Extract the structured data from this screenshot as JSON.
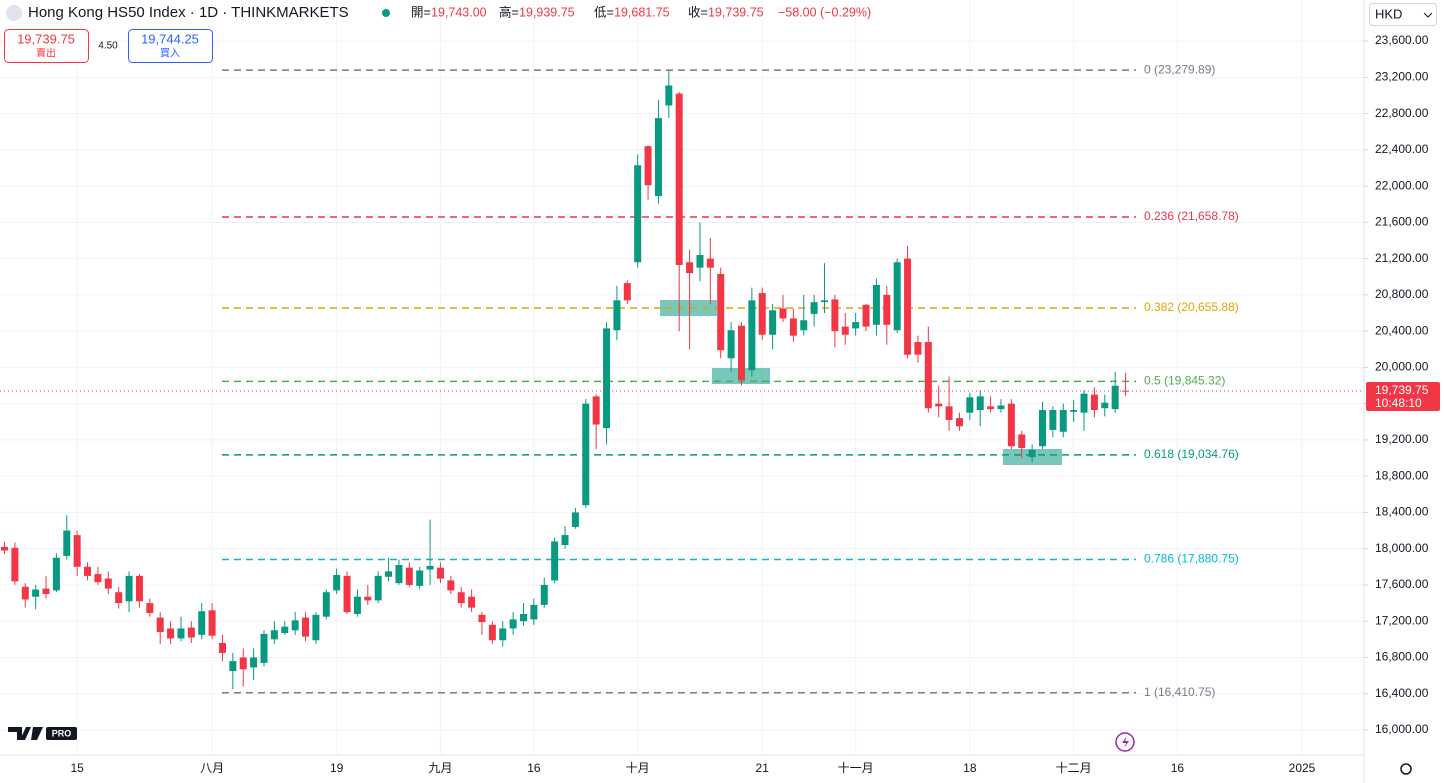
{
  "chart_data": {
    "type": "candlestick",
    "title": "Hong Kong HS50 Index · 1D · THINKMARKETS",
    "header": [
      {
        "label": "開=",
        "value": "19,743.00"
      },
      {
        "label": "高=",
        "value": "19,939.75"
      },
      {
        "label": "低=",
        "value": "19,681.75"
      },
      {
        "label": "收=",
        "value": "19,739.75"
      }
    ],
    "change": "−58.00 (−0.29%)",
    "quote": {
      "sell": "19,739.75",
      "sell_label": "賣出",
      "spread": "4.50",
      "buy": "19,744.25",
      "buy_label": "買入"
    },
    "currency": "HKD",
    "logo": "PRO",
    "last_price": {
      "label": "19,739.75",
      "countdown": "10:48:10"
    },
    "up_color": "#089981",
    "down_color": "#f23645",
    "grid": true,
    "categories": [
      null,
      null,
      null,
      null,
      null,
      null,
      null,
      "15",
      null,
      null,
      null,
      null,
      null,
      null,
      null,
      null,
      null,
      null,
      null,
      null,
      "八月",
      null,
      null,
      null,
      null,
      null,
      null,
      null,
      null,
      null,
      null,
      null,
      "19",
      null,
      null,
      null,
      null,
      null,
      null,
      null,
      null,
      null,
      "九月",
      null,
      null,
      null,
      null,
      null,
      null,
      null,
      null,
      "16",
      null,
      null,
      null,
      null,
      null,
      null,
      null,
      null,
      null,
      "十月",
      null,
      null,
      null,
      null,
      null,
      null,
      null,
      null,
      null,
      null,
      null,
      "21",
      null,
      null,
      null,
      null,
      null,
      null,
      null,
      null,
      "十一月",
      null,
      null,
      null,
      null,
      null,
      null,
      null,
      null,
      null,
      null,
      "18",
      null,
      null,
      null,
      null,
      null,
      null,
      null,
      null,
      null,
      "十二月",
      null,
      null,
      null,
      null,
      null,
      null,
      null,
      null,
      null,
      "16",
      null,
      null,
      null,
      null,
      null,
      null,
      null,
      null,
      null,
      null,
      null,
      "2025"
    ],
    "open": [
      18020,
      18010,
      17580,
      17470,
      17560,
      17540,
      17920,
      18150,
      17800,
      17720,
      17670,
      17520,
      17420,
      17700,
      17400,
      17240,
      17120,
      17010,
      17130,
      17050,
      17320,
      16960,
      16650,
      16800,
      16690,
      16740,
      17000,
      17070,
      17100,
      17240,
      16990,
      17250,
      17540,
      17700,
      17280,
      17470,
      17430,
      17690,
      17620,
      17790,
      17590,
      17770,
      17790,
      17650,
      17520,
      17470,
      17270,
      17160,
      16990,
      17120,
      17200,
      17220,
      17380,
      17650,
      18040,
      18240,
      18480,
      19680,
      19330,
      20410,
      20930,
      21160,
      22440,
      21890,
      22890,
      23020,
      21160,
      21100,
      21200,
      21030,
      20100,
      20460,
      19970,
      20820,
      20360,
      20650,
      20540,
      20410,
      20590,
      20720,
      20750,
      20450,
      20430,
      20690,
      20470,
      20800,
      20410,
      21200,
      20280,
      20280,
      19600,
      19570,
      19440,
      19500,
      19530,
      19570,
      19540,
      19600,
      19260,
      19010,
      19130,
      19310,
      19290,
      19510,
      19500,
      19700,
      19550,
      19540,
      19743,
      null,
      null,
      null,
      null,
      null,
      null,
      null,
      null,
      null,
      null,
      null,
      null,
      null,
      null,
      null,
      null,
      null
    ],
    "high": [
      18080,
      18070,
      17620,
      17600,
      17700,
      17950,
      18370,
      18200,
      17850,
      17800,
      17750,
      17580,
      17750,
      17720,
      17450,
      17300,
      17200,
      17250,
      17200,
      17400,
      17400,
      17050,
      16850,
      16900,
      16900,
      17100,
      17200,
      17200,
      17300,
      17300,
      17300,
      17550,
      17780,
      17750,
      17550,
      17600,
      17750,
      17900,
      17880,
      17850,
      17800,
      18320,
      17850,
      17700,
      17580,
      17550,
      17300,
      17200,
      17200,
      17300,
      17400,
      17450,
      17680,
      18120,
      18250,
      18450,
      19650,
      19700,
      20500,
      20900,
      20960,
      22350,
      22450,
      22950,
      23280,
      23040,
      21300,
      21600,
      21430,
      21100,
      20500,
      20500,
      20880,
      20880,
      20700,
      20800,
      20650,
      20800,
      20800,
      21150,
      20800,
      20600,
      20600,
      20700,
      20980,
      20900,
      21200,
      21340,
      20350,
      20450,
      19800,
      19900,
      19500,
      19720,
      19750,
      19680,
      19650,
      19650,
      19300,
      19150,
      19620,
      19570,
      19600,
      19640,
      19750,
      19780,
      19700,
      19950,
      19939.75,
      null,
      null,
      null,
      null,
      null,
      null,
      null,
      null,
      null,
      null,
      null,
      null,
      null,
      null,
      null,
      null,
      null
    ],
    "low": [
      17940,
      17600,
      17350,
      17330,
      17450,
      17520,
      17880,
      17700,
      17650,
      17600,
      17500,
      17340,
      17300,
      17350,
      17250,
      16950,
      16950,
      16980,
      16960,
      17000,
      17000,
      16760,
      16450,
      16480,
      16550,
      16700,
      16950,
      17050,
      17050,
      16980,
      16950,
      17220,
      17500,
      17280,
      17250,
      17380,
      17400,
      17640,
      17600,
      17580,
      17550,
      17600,
      17620,
      17500,
      17350,
      17300,
      17050,
      16950,
      16920,
      17050,
      17150,
      17160,
      17350,
      17620,
      18000,
      18220,
      18450,
      19100,
      19150,
      20300,
      20700,
      21100,
      21850,
      21800,
      22750,
      20400,
      20200,
      20950,
      20700,
      20100,
      19950,
      19800,
      19900,
      20300,
      20200,
      20500,
      20280,
      20350,
      20450,
      20600,
      20220,
      20250,
      20350,
      20400,
      20350,
      20250,
      20380,
      20100,
      20050,
      19500,
      19450,
      19300,
      19300,
      19420,
      19350,
      19500,
      19500,
      19100,
      19000,
      18950,
      19100,
      19230,
      19230,
      19400,
      19300,
      19450,
      19460,
      19500,
      19681.75,
      null,
      null,
      null,
      null,
      null,
      null,
      null,
      null,
      null,
      null,
      null,
      null,
      null,
      null,
      null,
      null,
      null
    ],
    "close": [
      17980,
      17640,
      17440,
      17550,
      17500,
      17900,
      18200,
      17800,
      17700,
      17630,
      17560,
      17400,
      17700,
      17420,
      17290,
      17080,
      17010,
      17120,
      17020,
      17310,
      17040,
      16850,
      16760,
      16670,
      16800,
      17060,
      17100,
      17140,
      17210,
      17030,
      17270,
      17520,
      17710,
      17300,
      17470,
      17430,
      17700,
      17750,
      17820,
      17600,
      17760,
      17810,
      17670,
      17540,
      17400,
      17350,
      17190,
      16990,
      17120,
      17220,
      17280,
      17380,
      17600,
      18080,
      18150,
      18400,
      19600,
      19370,
      20430,
      20740,
      20740,
      22230,
      22010,
      22750,
      23110,
      21130,
      21040,
      21240,
      21100,
      20190,
      20410,
      19860,
      20740,
      20360,
      20630,
      20540,
      20350,
      20520,
      20720,
      20740,
      20400,
      20360,
      20500,
      20450,
      20910,
      20470,
      21160,
      20140,
      20140,
      19550,
      19570,
      19420,
      19350,
      19670,
      19680,
      19540,
      19580,
      19130,
      19110,
      19090,
      19530,
      19530,
      19530,
      19530,
      19710,
      19530,
      19610,
      19797.75,
      19739.75,
      null,
      null,
      null,
      null,
      null,
      null,
      null,
      null,
      null,
      null,
      null,
      null,
      null,
      null,
      null,
      null,
      null
    ],
    "ylim": [
      15724,
      24053
    ],
    "yticks": [
      {
        "value": 16000,
        "label": "16,000.00"
      },
      {
        "value": 16400,
        "label": "16,400.00"
      },
      {
        "value": 16800,
        "label": "16,800.00"
      },
      {
        "value": 17200,
        "label": "17,200.00"
      },
      {
        "value": 17600,
        "label": "17,600.00"
      },
      {
        "value": 18000,
        "label": "18,000.00"
      },
      {
        "value": 18400,
        "label": "18,400.00"
      },
      {
        "value": 18800,
        "label": "18,800.00"
      },
      {
        "value": 19200,
        "label": "19,200.00"
      },
      {
        "value": 19600,
        "label": "19,600.00"
      },
      {
        "value": 20000,
        "label": "20,000.00"
      },
      {
        "value": 20400,
        "label": "20,400.00"
      },
      {
        "value": 20800,
        "label": "20,800.00"
      },
      {
        "value": 21200,
        "label": "21,200.00"
      },
      {
        "value": 21600,
        "label": "21,600.00"
      },
      {
        "value": 22000,
        "label": "22,000.00"
      },
      {
        "value": 22400,
        "label": "22,400.00"
      },
      {
        "value": 22800,
        "label": "22,800.00"
      },
      {
        "value": 23200,
        "label": "23,200.00"
      },
      {
        "value": 23600,
        "label": "23,600.00"
      }
    ],
    "fib_levels": [
      {
        "label": "0 (23,279.89)",
        "value": 23279.89,
        "color": "#787b86"
      },
      {
        "label": "0.236 (21,658.78)",
        "value": 21658.78,
        "color": "#e0394f"
      },
      {
        "label": "0.382 (20,655.88)",
        "value": 20655.88,
        "color": "#e6a300"
      },
      {
        "label": "0.5 (19,845.32)",
        "value": 19845.32,
        "color": "#4caf50"
      },
      {
        "label": "0.618 (19,034.76)",
        "value": 19034.76,
        "color": "#089981"
      },
      {
        "label": "0.786 (17,880.75)",
        "value": 17880.75,
        "color": "#00bcd4"
      },
      {
        "label": "1 (16,410.75)",
        "value": 16410.75,
        "color": "#787b86"
      }
    ]
  }
}
